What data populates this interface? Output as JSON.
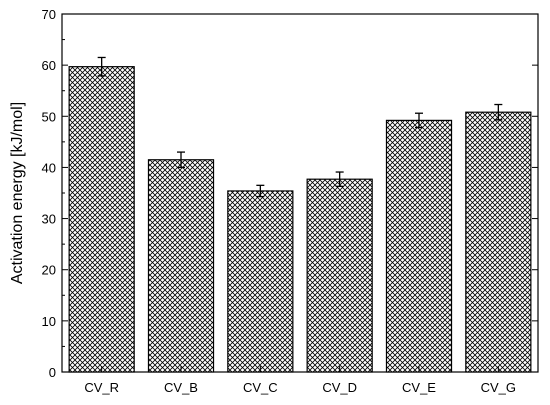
{
  "chart_data": {
    "type": "bar",
    "title": "",
    "xlabel": "",
    "ylabel": "Activation energy [kJ/mol]",
    "categories": [
      "CV_R",
      "CV_B",
      "CV_C",
      "CV_D",
      "CV_E",
      "CV_G"
    ],
    "values": [
      59.7,
      41.5,
      35.4,
      37.7,
      49.2,
      50.8
    ],
    "errors": [
      1.8,
      1.5,
      1.1,
      1.4,
      1.4,
      1.5
    ],
    "ylim": [
      0,
      70
    ],
    "yticks": [
      0,
      10,
      20,
      30,
      40,
      50,
      60,
      70
    ],
    "yticklabels": [
      "0",
      "10",
      "20",
      "30",
      "40",
      "50",
      "60",
      "70"
    ],
    "grid": false,
    "legend": "none",
    "bar_fill": "crosshatch",
    "colors": {
      "bar_fill": "#ffffff",
      "hatch": "#000000",
      "edge": "#000000"
    }
  }
}
